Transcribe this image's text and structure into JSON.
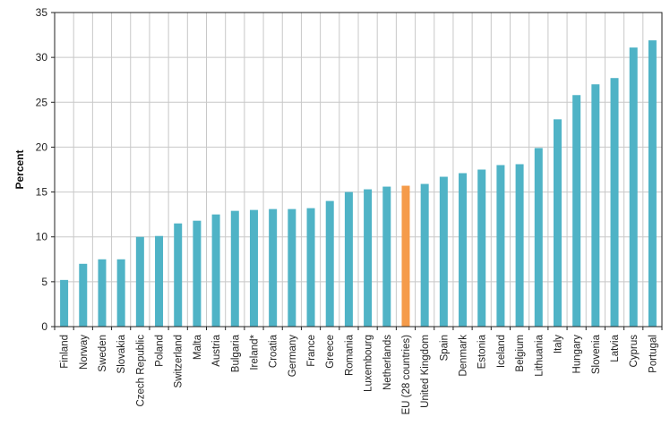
{
  "chart_data": {
    "type": "bar",
    "ylabel": "Percent",
    "xlabel": "",
    "ylim": [
      0,
      35
    ],
    "yticks": [
      0,
      5,
      10,
      15,
      20,
      25,
      30,
      35
    ],
    "grid": "vertical and horizontal",
    "categories": [
      "Finland",
      "Norway",
      "Sweden",
      "Slovakia",
      "Czech Republic",
      "Poland",
      "Switzerland",
      "Malta",
      "Austria",
      "Bulgaria",
      "Ireland*",
      "Croatia",
      "Germany",
      "France",
      "Greece",
      "Romania",
      "Luxembourg",
      "Netherlands",
      "EU (28 countries)",
      "United Kingdom",
      "Spain",
      "Denmark",
      "Estonia",
      "Iceland",
      "Belgium",
      "Lithuania",
      "Italy",
      "Hungary",
      "Slovenia",
      "Latvia",
      "Cyprus",
      "Portugal"
    ],
    "values": [
      5.2,
      7.0,
      7.5,
      7.5,
      10.0,
      10.1,
      11.5,
      11.8,
      12.5,
      12.9,
      13.0,
      13.1,
      13.1,
      13.2,
      14.0,
      15.0,
      15.3,
      15.6,
      15.7,
      15.9,
      16.7,
      17.1,
      17.5,
      18.0,
      18.1,
      19.9,
      23.1,
      25.8,
      27.0,
      27.7,
      31.1,
      31.9
    ],
    "highlight_category": "EU (28 countries)",
    "colors": {
      "bar": "#4fb3c6",
      "highlight": "#f59b4a",
      "grid": "#c8c8c8",
      "axis": "#222222"
    }
  }
}
